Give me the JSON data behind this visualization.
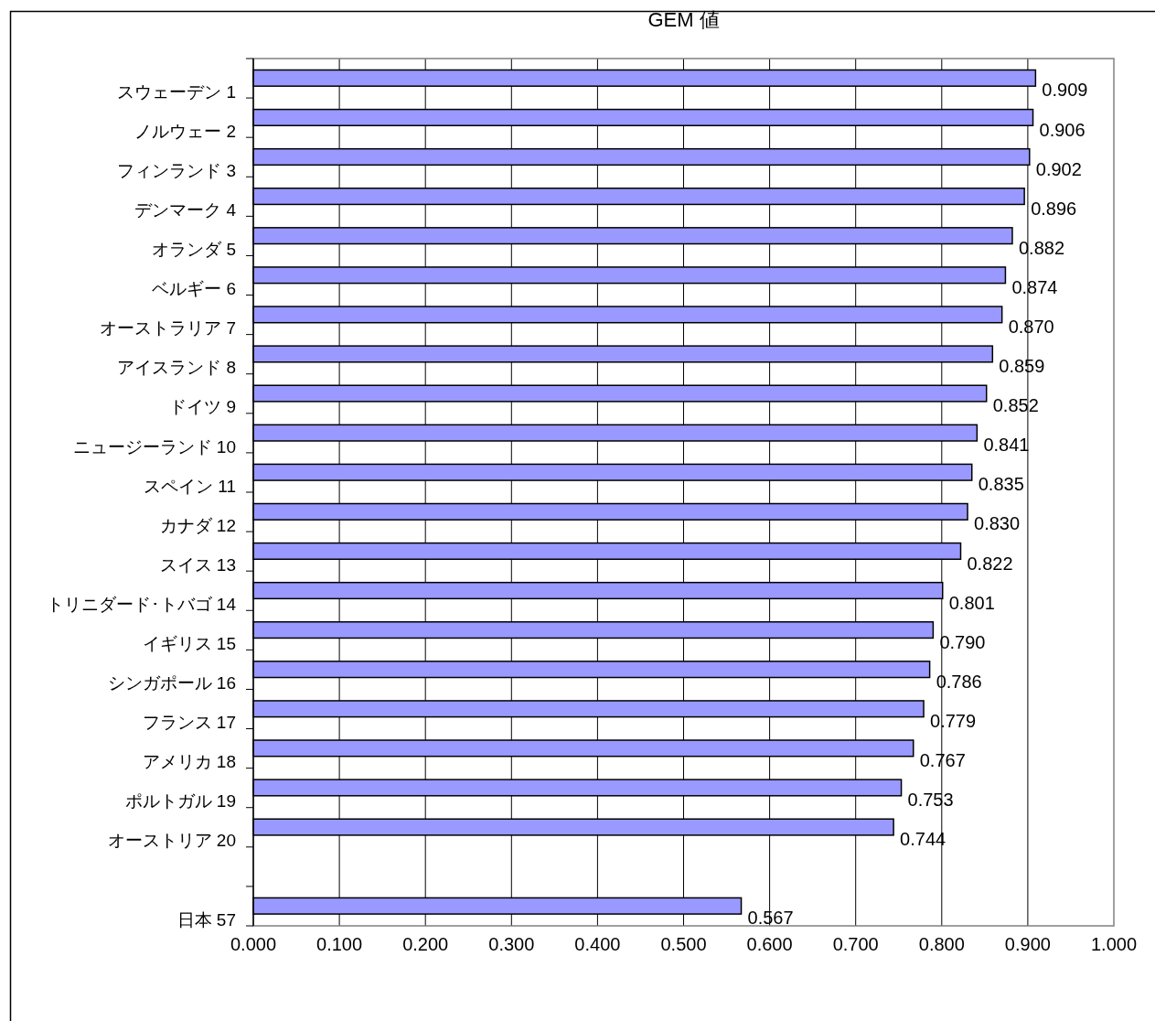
{
  "chart_data": {
    "type": "bar",
    "orientation": "horizontal",
    "title": "GEM 値",
    "categories": [
      "スウェーデン 1",
      "ノルウェー 2",
      "フィンランド 3",
      "デンマーク 4",
      "オランダ 5",
      "ベルギー 6",
      "オーストラリア 7",
      "アイスランド 8",
      "ドイツ 9",
      "ニュージーランド 10",
      "スペイン 11",
      "カナダ 12",
      "スイス 13",
      "トリニダード･トバゴ 14",
      "イギリス 15",
      "シンガポール 16",
      "フランス 17",
      "アメリカ 18",
      "ポルトガル 19",
      "オーストリア 20",
      null,
      "日本 57"
    ],
    "values": [
      0.909,
      0.906,
      0.902,
      0.896,
      0.882,
      0.874,
      0.87,
      0.859,
      0.852,
      0.841,
      0.835,
      0.83,
      0.822,
      0.801,
      0.79,
      0.786,
      0.779,
      0.767,
      0.753,
      0.744,
      null,
      0.567
    ],
    "value_labels": [
      "0.909",
      "0.906",
      "0.902",
      "0.896",
      "0.882",
      "0.874",
      "0.870",
      "0.859",
      "0.852",
      "0.841",
      "0.835",
      "0.830",
      "0.822",
      "0.801",
      "0.790",
      "0.786",
      "0.779",
      "0.767",
      "0.753",
      "0.744",
      null,
      "0.567"
    ],
    "color": "#9999ff",
    "xlim": [
      0,
      1
    ],
    "xticks": [
      {
        "value": 0,
        "label": "0.000"
      },
      {
        "value": 0.1,
        "label": "0.100"
      },
      {
        "value": 0.2,
        "label": "0.200"
      },
      {
        "value": 0.3,
        "label": "0.300"
      },
      {
        "value": 0.4,
        "label": "0.400"
      },
      {
        "value": 0.5,
        "label": "0.500"
      },
      {
        "value": 0.6,
        "label": "0.600"
      },
      {
        "value": 0.7,
        "label": "0.700"
      },
      {
        "value": 0.8,
        "label": "0.800"
      },
      {
        "value": 0.9,
        "label": "0.900"
      },
      {
        "value": 1,
        "label": "1.000"
      }
    ],
    "grid": "x"
  }
}
